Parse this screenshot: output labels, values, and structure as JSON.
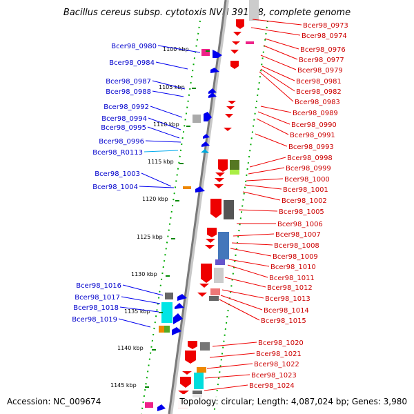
{
  "title": "Bacillus cereus subsp. cytotoxis NVH 391-98, complete genome",
  "footer": {
    "accession": "Accession: NC_009674",
    "summary": "Topology: circular; Length: 4,087,024 bp; Genes: 3,980"
  },
  "colors": {
    "forward_gene": "#0000ee",
    "reverse_gene": "#ee0000",
    "rna_gene": "#00aaee",
    "backbone": "#888888",
    "ticks": "#008800"
  },
  "scale": {
    "unit": "kbp",
    "ticks": [
      {
        "label": "1100 kbp",
        "kbp": 1100
      },
      {
        "label": "1105 kbp",
        "kbp": 1105
      },
      {
        "label": "1110 kbp",
        "kbp": 1110
      },
      {
        "label": "1115 kbp",
        "kbp": 1115
      },
      {
        "label": "1120 kbp",
        "kbp": 1120
      },
      {
        "label": "1125 kbp",
        "kbp": 1125
      },
      {
        "label": "1130 kbp",
        "kbp": 1130
      },
      {
        "label": "1135 kbp",
        "kbp": 1135
      },
      {
        "label": "1140 kbp",
        "kbp": 1140
      },
      {
        "label": "1145 kbp",
        "kbp": 1145
      }
    ]
  },
  "forward_labels": [
    {
      "text": "Bcer98_0980",
      "type": "gene"
    },
    {
      "text": "Bcer98_0984",
      "type": "gene"
    },
    {
      "text": "Bcer98_0987",
      "type": "gene"
    },
    {
      "text": "Bcer98_0988",
      "type": "gene"
    },
    {
      "text": "Bcer98_0992",
      "type": "gene"
    },
    {
      "text": "Bcer98_0994",
      "type": "gene"
    },
    {
      "text": "Bcer98_0995",
      "type": "gene"
    },
    {
      "text": "Bcer98_0996",
      "type": "gene"
    },
    {
      "text": "Bcer98_R0113",
      "type": "rna"
    },
    {
      "text": "Bcer98_1003",
      "type": "gene"
    },
    {
      "text": "Bcer98_1004",
      "type": "gene"
    },
    {
      "text": "Bcer98_1016",
      "type": "gene"
    },
    {
      "text": "Bcer98_1017",
      "type": "gene"
    },
    {
      "text": "Bcer98_1018",
      "type": "gene"
    },
    {
      "text": "Bcer98_1019",
      "type": "gene"
    }
  ],
  "reverse_labels": [
    "Bcer98_0973",
    "Bcer98_0974",
    "Bcer98_0976",
    "Bcer98_0977",
    "Bcer98_0979",
    "Bcer98_0981",
    "Bcer98_0982",
    "Bcer98_0983",
    "Bcer98_0989",
    "Bcer98_0990",
    "Bcer98_0991",
    "Bcer98_0993",
    "Bcer98_0998",
    "Bcer98_0999",
    "Bcer98_1000",
    "Bcer98_1001",
    "Bcer98_1002",
    "Bcer98_1005",
    "Bcer98_1006",
    "Bcer98_1007",
    "Bcer98_1008",
    "Bcer98_1009",
    "Bcer98_1010",
    "Bcer98_1011",
    "Bcer98_1012",
    "Bcer98_1013",
    "Bcer98_1014",
    "Bcer98_1015",
    "Bcer98_1020",
    "Bcer98_1021",
    "Bcer98_1022",
    "Bcer98_1023",
    "Bcer98_1024"
  ]
}
